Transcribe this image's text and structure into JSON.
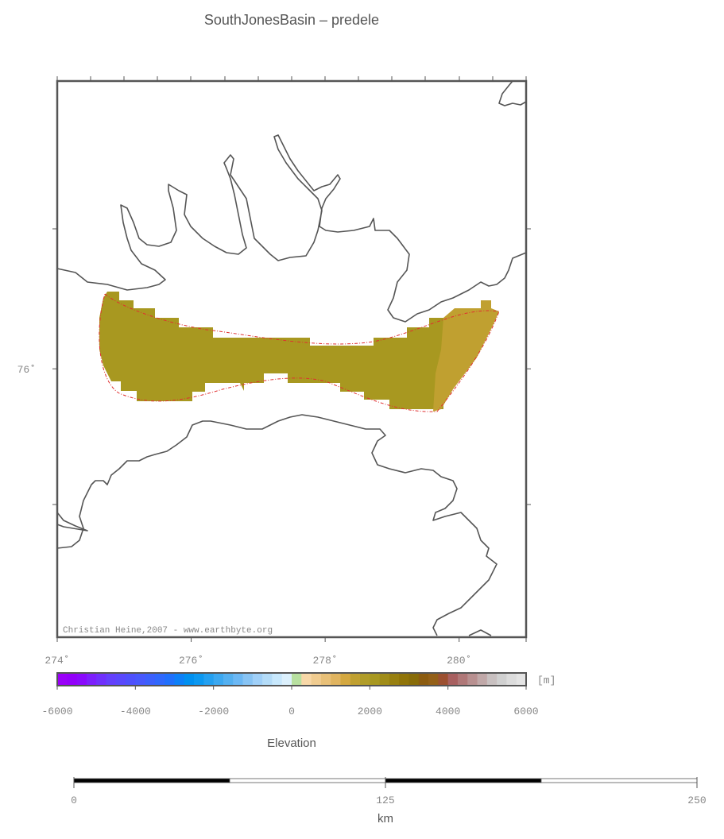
{
  "title": "SouthJonesBasin – predele",
  "map": {
    "xlim": [
      274,
      281
    ],
    "ylim": [
      75.03,
      77.04
    ],
    "xticks": [
      {
        "value": 274,
        "label": "274˚"
      },
      {
        "value": 276,
        "label": "276˚"
      },
      {
        "value": 278,
        "label": "278˚"
      },
      {
        "value": 280,
        "label": "280˚"
      }
    ],
    "yticks": [
      {
        "value": 76,
        "label": "76˚"
      }
    ],
    "credit": "Christian Heine,2007 - www.earthbyte.org"
  },
  "colorbar": {
    "label": "Elevation",
    "unit": "[m]",
    "lim": [
      -6000,
      6000
    ],
    "ticks": [
      -6000,
      -4000,
      -2000,
      0,
      2000,
      4000,
      6000
    ],
    "colors": [
      "#9a00f8",
      "#9300fa",
      "#8a0afc",
      "#7d1ffc",
      "#7030fc",
      "#6440fc",
      "#5a48fc",
      "#4f50fc",
      "#4858fc",
      "#3c60fc",
      "#3068fc",
      "#2070fc",
      "#0d80f8",
      "#0090f0",
      "#0c98f0",
      "#24a0f0",
      "#3ca8f0",
      "#54b0f0",
      "#6cb8f4",
      "#88c4f4",
      "#a0d0f8",
      "#b4dcf8",
      "#c8e8fc",
      "#dcf0fc",
      "#b8e0a0",
      "#f8d8a8",
      "#f0cc90",
      "#e8c078",
      "#e0b460",
      "#d4a840",
      "#c0a030",
      "#b09c28",
      "#a89820",
      "#a08c18",
      "#988010",
      "#907408",
      "#886c08",
      "#8c5c10",
      "#946018",
      "#9c5030",
      "#a86060",
      "#b07878",
      "#b89090",
      "#c0a8a8",
      "#c8c0c0",
      "#d0d0d0",
      "#dcdcdc",
      "#e4e4e4"
    ]
  },
  "scalebar": {
    "lim": [
      0,
      250
    ],
    "ticks": [
      0,
      125,
      250
    ],
    "unit": "km"
  }
}
